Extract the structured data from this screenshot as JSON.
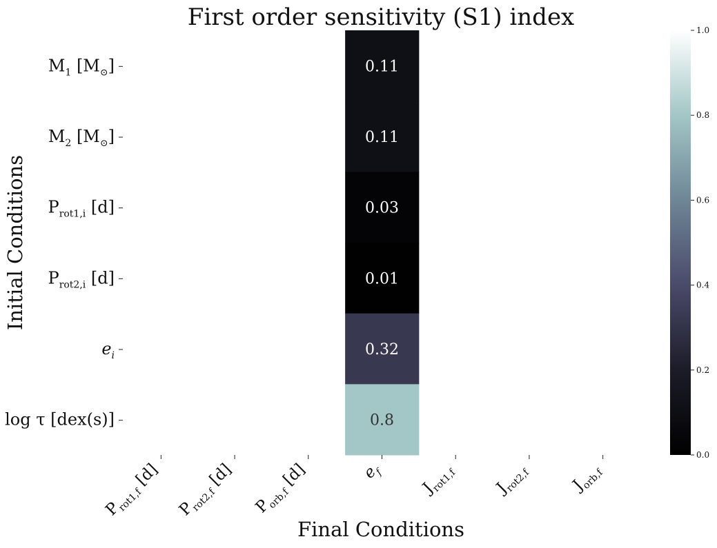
{
  "chart_data": {
    "type": "heatmap",
    "title": "First order sensitivity (S1) index",
    "xlabel": "Final Conditions",
    "ylabel": "Initial Conditions",
    "rows": [
      {
        "base": "M",
        "sub": "1",
        "rest": " [M",
        "sub2": "⊙",
        "rest2": "]"
      },
      {
        "base": "M",
        "sub": "2",
        "rest": " [M",
        "sub2": "⊙",
        "rest2": "]"
      },
      {
        "base": "P",
        "sub": "rot1,i",
        "rest": " [d]"
      },
      {
        "base": "P",
        "sub": "rot2,i",
        "rest": " [d]"
      },
      {
        "base": "e",
        "sub": "i",
        "rest": "",
        "italic": true
      },
      {
        "base": "log τ",
        "sub": "",
        "rest": " [dex(s)]"
      }
    ],
    "columns": [
      {
        "base": "P",
        "sub": "rot1,f",
        "rest": " [d]"
      },
      {
        "base": "P",
        "sub": "rot2,f",
        "rest": " [d]"
      },
      {
        "base": "P",
        "sub": "orb,f",
        "rest": " [d]"
      },
      {
        "base": "e",
        "sub": "f",
        "rest": "",
        "italic": true
      },
      {
        "base": "J",
        "sub": "rot1,f",
        "rest": ""
      },
      {
        "base": "J",
        "sub": "rot2,f",
        "rest": ""
      },
      {
        "base": "J",
        "sub": "orb,f",
        "rest": ""
      }
    ],
    "values": [
      [
        null,
        null,
        null,
        0.11,
        null,
        null,
        null
      ],
      [
        null,
        null,
        null,
        0.11,
        null,
        null,
        null
      ],
      [
        null,
        null,
        null,
        0.03,
        null,
        null,
        null
      ],
      [
        null,
        null,
        null,
        0.01,
        null,
        null,
        null
      ],
      [
        null,
        null,
        null,
        0.32,
        null,
        null,
        null
      ],
      [
        null,
        null,
        null,
        0.8,
        null,
        null,
        null
      ]
    ],
    "value_labels": [
      [
        "",
        "",
        "",
        "0.11",
        "",
        "",
        ""
      ],
      [
        "",
        "",
        "",
        "0.11",
        "",
        "",
        ""
      ],
      [
        "",
        "",
        "",
        "0.03",
        "",
        "",
        ""
      ],
      [
        "",
        "",
        "",
        "0.01",
        "",
        "",
        ""
      ],
      [
        "",
        "",
        "",
        "0.32",
        "",
        "",
        ""
      ],
      [
        "",
        "",
        "",
        "0.8",
        "",
        "",
        ""
      ]
    ],
    "colorbar": {
      "range": [
        0.0,
        1.0
      ],
      "ticks": [
        "0.0",
        "0.2",
        "0.4",
        "0.6",
        "0.8",
        "1.0"
      ],
      "colormap": "bone"
    }
  }
}
